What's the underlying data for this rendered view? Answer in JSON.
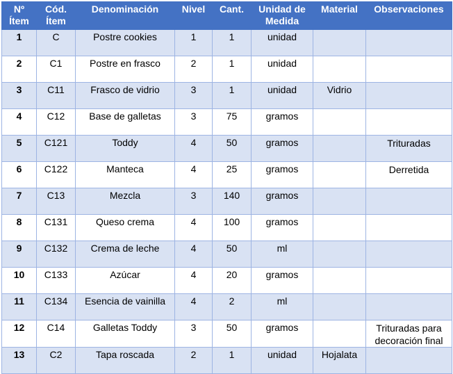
{
  "headers": {
    "num": "Nº Ítem",
    "cod": "Cód. Ítem",
    "denominacion": "Denominación",
    "nivel": "Nivel",
    "cant": "Cant.",
    "unidad": "Unidad de Medida",
    "material": "Material",
    "observaciones": "Observaciones"
  },
  "rows": [
    {
      "num": "1",
      "cod": "C",
      "denominacion": "Postre cookies",
      "nivel": "1",
      "cant": "1",
      "unidad": "unidad",
      "material": "",
      "observaciones": ""
    },
    {
      "num": "2",
      "cod": "C1",
      "denominacion": "Postre en frasco",
      "nivel": "2",
      "cant": "1",
      "unidad": "unidad",
      "material": "",
      "observaciones": ""
    },
    {
      "num": "3",
      "cod": "C11",
      "denominacion": "Frasco de vidrio",
      "nivel": "3",
      "cant": "1",
      "unidad": "unidad",
      "material": "Vidrio",
      "observaciones": ""
    },
    {
      "num": "4",
      "cod": "C12",
      "denominacion": "Base de galletas",
      "nivel": "3",
      "cant": "75",
      "unidad": "gramos",
      "material": "",
      "observaciones": ""
    },
    {
      "num": "5",
      "cod": "C121",
      "denominacion": "Toddy",
      "nivel": "4",
      "cant": "50",
      "unidad": "gramos",
      "material": "",
      "observaciones": "Trituradas"
    },
    {
      "num": "6",
      "cod": "C122",
      "denominacion": "Manteca",
      "nivel": "4",
      "cant": "25",
      "unidad": "gramos",
      "material": "",
      "observaciones": "Derretida"
    },
    {
      "num": "7",
      "cod": "C13",
      "denominacion": "Mezcla",
      "nivel": "3",
      "cant": "140",
      "unidad": "gramos",
      "material": "",
      "observaciones": ""
    },
    {
      "num": "8",
      "cod": "C131",
      "denominacion": "Queso crema",
      "nivel": "4",
      "cant": "100",
      "unidad": "gramos",
      "material": "",
      "observaciones": ""
    },
    {
      "num": "9",
      "cod": "C132",
      "denominacion": "Crema de leche",
      "nivel": "4",
      "cant": "50",
      "unidad": "ml",
      "material": "",
      "observaciones": ""
    },
    {
      "num": "10",
      "cod": "C133",
      "denominacion": "Azúcar",
      "nivel": "4",
      "cant": "20",
      "unidad": "gramos",
      "material": "",
      "observaciones": ""
    },
    {
      "num": "11",
      "cod": "C134",
      "denominacion": "Esencia de vainilla",
      "nivel": "4",
      "cant": "2",
      "unidad": "ml",
      "material": "",
      "observaciones": ""
    },
    {
      "num": "12",
      "cod": "C14",
      "denominacion": "Galletas Toddy",
      "nivel": "3",
      "cant": "50",
      "unidad": "gramos",
      "material": "",
      "observaciones": "Trituradas para decoración final"
    },
    {
      "num": "13",
      "cod": "C2",
      "denominacion": "Tapa roscada",
      "nivel": "2",
      "cant": "1",
      "unidad": "unidad",
      "material": "Hojalata",
      "observaciones": ""
    }
  ]
}
